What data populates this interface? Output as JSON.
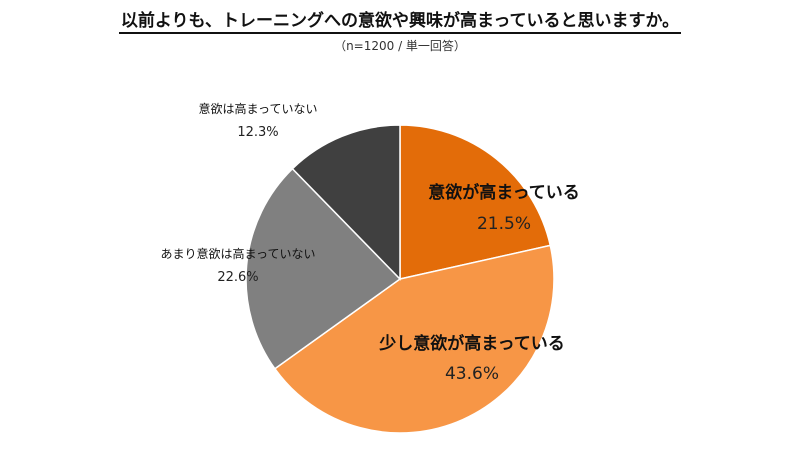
{
  "page": {
    "title": "以前よりも、トレーニングへの意欲や興味が高まっていると思いますか。",
    "subtitle": "（n=1200 / 単一回答）"
  },
  "chart_data": {
    "type": "pie",
    "title": "以前よりも、トレーニングへの意欲や興味が高まっていると思いますか。",
    "subtitle": "（n=1200 / 単一回答）",
    "start": "12 o'clock, clockwise",
    "slices": [
      {
        "label": "意欲が高まっている",
        "value": 21.5,
        "value_label": "21.5%",
        "color": "#E36C09",
        "emphasis": true
      },
      {
        "label": "少し意欲が高まっている",
        "value": 43.6,
        "value_label": "43.6%",
        "color": "#F79646",
        "emphasis": true
      },
      {
        "label": "あまり意欲は高まっていない",
        "value": 22.6,
        "value_label": "22.6%",
        "color": "#808080",
        "emphasis": false
      },
      {
        "label": "意欲は高まっていない",
        "value": 12.3,
        "value_label": "12.3%",
        "color": "#404040",
        "emphasis": false
      }
    ]
  }
}
